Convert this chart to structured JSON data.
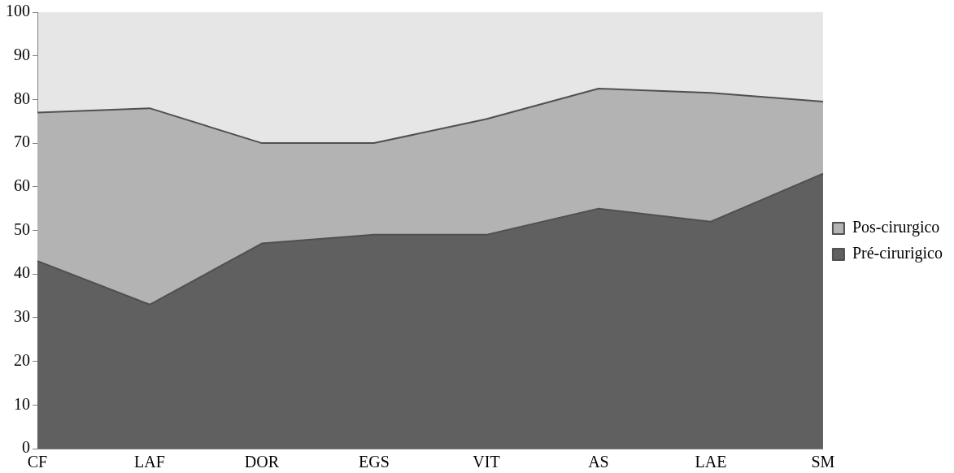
{
  "chart_data": {
    "type": "area",
    "categories": [
      "CF",
      "LAF",
      "DOR",
      "EGS",
      "VIT",
      "AS",
      "LAE",
      "SM"
    ],
    "series": [
      {
        "name": "Pos-cirurgico",
        "color": "#b3b3b3",
        "values": [
          77,
          78,
          70,
          70,
          75.5,
          82.5,
          81.5,
          79.5
        ]
      },
      {
        "name": "Pré-cirurigico",
        "color": "#606060",
        "values": [
          43,
          33,
          47,
          49,
          49,
          55,
          52,
          63
        ]
      }
    ],
    "ylim": [
      0,
      100
    ],
    "yticks": [
      0,
      10,
      20,
      30,
      40,
      50,
      60,
      70,
      80,
      90,
      100
    ],
    "grid": false,
    "legend": "right",
    "marker": "none"
  }
}
